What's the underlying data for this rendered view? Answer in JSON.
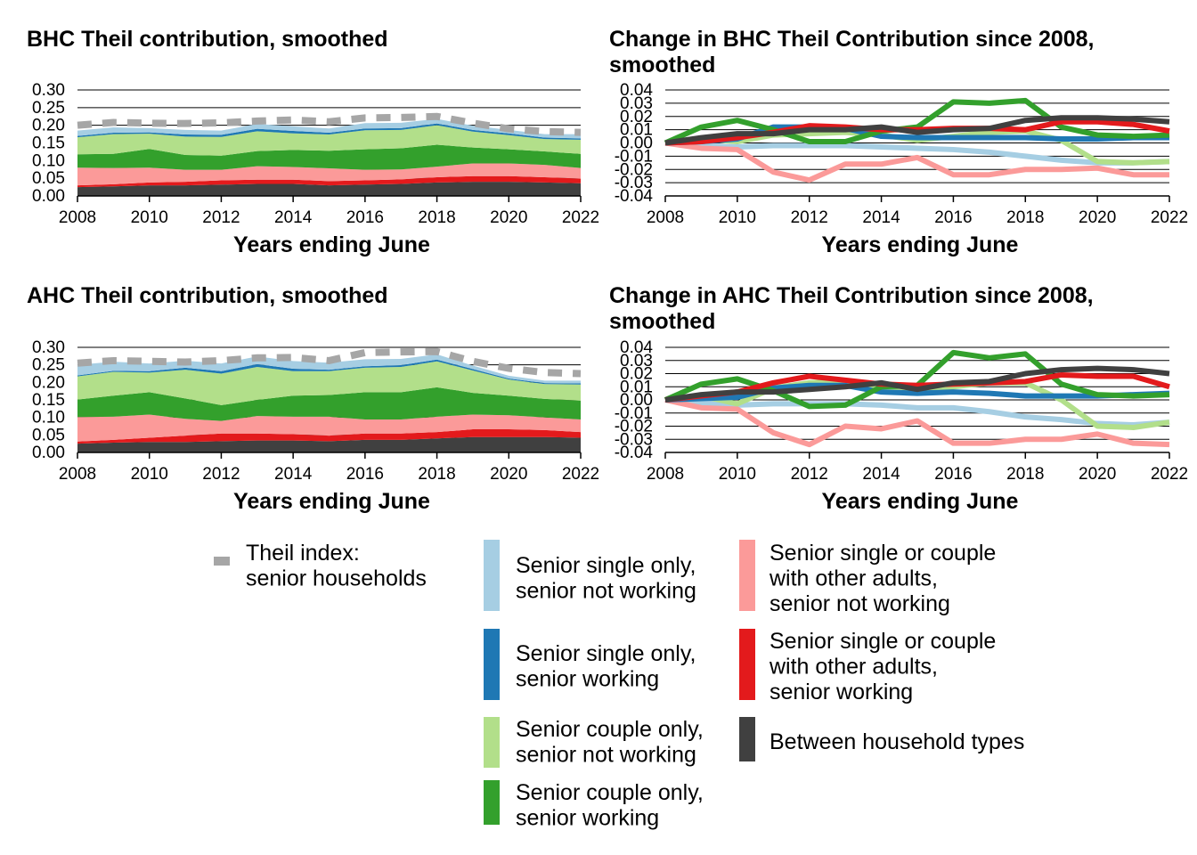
{
  "colors": {
    "theil": "#a6a6a6",
    "single_not_working": "#a6cee3",
    "single_working": "#1f78b4",
    "couple_not_working": "#b2df8a",
    "couple_working": "#33a02c",
    "other_not_working": "#fb9a99",
    "other_working": "#e31a1c",
    "between": "#404040"
  },
  "legend": [
    {
      "key": "theil",
      "lines": [
        "Theil index:",
        "senior households"
      ]
    },
    {
      "key": "single_not_working",
      "lines": [
        "Senior single only,",
        "senior not working"
      ]
    },
    {
      "key": "single_working",
      "lines": [
        "Senior single only,",
        "senior working"
      ]
    },
    {
      "key": "couple_not_working",
      "lines": [
        "Senior couple only,",
        "senior not working"
      ]
    },
    {
      "key": "couple_working",
      "lines": [
        "Senior couple only,",
        "senior working"
      ]
    },
    {
      "key": "other_not_working",
      "lines": [
        "Senior single or couple",
        "with other adults,",
        "senior not working"
      ]
    },
    {
      "key": "other_working",
      "lines": [
        "Senior single or couple",
        "with other adults,",
        "senior working"
      ]
    },
    {
      "key": "between",
      "lines": [
        "Between household types"
      ]
    }
  ],
  "chart_data": [
    {
      "type": "area",
      "title_lines": [
        "BHC Theil contribution, smoothed"
      ],
      "xlabel": "Years ending June",
      "xlim": [
        2008,
        2022
      ],
      "xticks": [
        "2008",
        "2010",
        "2012",
        "2014",
        "2016",
        "2018",
        "2020",
        "2022"
      ],
      "ylim": [
        0,
        0.3
      ],
      "yticks": [
        "0.00",
        "0.05",
        "0.10",
        "0.15",
        "0.20",
        "0.25",
        "0.30"
      ],
      "grid": "horizontal",
      "x": [
        2008,
        2009,
        2010,
        2011,
        2012,
        2013,
        2014,
        2015,
        2016,
        2017,
        2018,
        2019,
        2020,
        2021,
        2022
      ],
      "stack_order": [
        "between",
        "other_working",
        "other_not_working",
        "couple_working",
        "couple_not_working",
        "single_working",
        "single_not_working"
      ],
      "series": {
        "between": [
          0.025,
          0.027,
          0.03,
          0.03,
          0.032,
          0.034,
          0.034,
          0.03,
          0.032,
          0.034,
          0.038,
          0.04,
          0.04,
          0.038,
          0.036
        ],
        "other_working": [
          0.005,
          0.006,
          0.008,
          0.01,
          0.012,
          0.012,
          0.012,
          0.012,
          0.012,
          0.013,
          0.015,
          0.016,
          0.016,
          0.015,
          0.013
        ],
        "other_not_working": [
          0.05,
          0.046,
          0.042,
          0.034,
          0.03,
          0.038,
          0.036,
          0.036,
          0.03,
          0.028,
          0.03,
          0.036,
          0.036,
          0.035,
          0.03
        ],
        "couple_working": [
          0.038,
          0.04,
          0.053,
          0.042,
          0.04,
          0.043,
          0.048,
          0.05,
          0.058,
          0.06,
          0.062,
          0.045,
          0.04,
          0.038,
          0.04
        ],
        "couple_not_working": [
          0.048,
          0.056,
          0.043,
          0.052,
          0.053,
          0.056,
          0.047,
          0.046,
          0.054,
          0.052,
          0.055,
          0.045,
          0.04,
          0.035,
          0.04
        ],
        "single_working": [
          0.004,
          0.004,
          0.004,
          0.006,
          0.006,
          0.007,
          0.007,
          0.005,
          0.005,
          0.005,
          0.005,
          0.005,
          0.005,
          0.004,
          0.004
        ],
        "single_not_working": [
          0.015,
          0.015,
          0.012,
          0.013,
          0.012,
          0.014,
          0.013,
          0.012,
          0.015,
          0.015,
          0.013,
          0.012,
          0.01,
          0.01,
          0.012
        ]
      },
      "theil": [
        0.2,
        0.208,
        0.206,
        0.205,
        0.207,
        0.212,
        0.215,
        0.21,
        0.221,
        0.222,
        0.225,
        0.206,
        0.19,
        0.182,
        0.18
      ]
    },
    {
      "type": "line",
      "title_lines": [
        "Change in BHC Theil Contribution since 2008,",
        "smoothed"
      ],
      "xlabel": "Years ending June",
      "xlim": [
        2008,
        2022
      ],
      "xticks": [
        "2008",
        "2010",
        "2012",
        "2014",
        "2016",
        "2018",
        "2020",
        "2022"
      ],
      "ylim": [
        -0.04,
        0.04
      ],
      "yticks": [
        "-0.04",
        "-0.03",
        "-0.02",
        "-0.01",
        "0.00",
        "0.01",
        "0.02",
        "0.03",
        "0.04"
      ],
      "grid": "horizontal",
      "x": [
        2008,
        2009,
        2010,
        2011,
        2012,
        2013,
        2014,
        2015,
        2016,
        2017,
        2018,
        2019,
        2020,
        2021,
        2022
      ],
      "draw_order": [
        "single_not_working",
        "other_not_working",
        "couple_not_working",
        "single_working",
        "couple_working",
        "other_working",
        "between"
      ],
      "series": {
        "single_not_working": [
          0,
          -0.002,
          -0.003,
          -0.002,
          -0.002,
          -0.002,
          -0.003,
          -0.004,
          -0.005,
          -0.007,
          -0.01,
          -0.013,
          -0.015,
          -0.015,
          -0.014
        ],
        "other_not_working": [
          0,
          -0.004,
          -0.005,
          -0.022,
          -0.028,
          -0.016,
          -0.016,
          -0.011,
          -0.024,
          -0.024,
          -0.02,
          -0.02,
          -0.019,
          -0.024,
          -0.024
        ],
        "couple_not_working": [
          0,
          0.003,
          0.001,
          0.006,
          0.007,
          0.008,
          0.006,
          0.002,
          0.005,
          0.008,
          0.009,
          0.002,
          -0.014,
          -0.015,
          -0.014
        ],
        "single_working": [
          0,
          0.001,
          0.003,
          0.012,
          0.012,
          0.011,
          0.005,
          0.004,
          0.004,
          0.004,
          0.004,
          0.003,
          0.003,
          0.004,
          0.004
        ],
        "couple_working": [
          0,
          0.012,
          0.017,
          0.01,
          0.001,
          0.001,
          0.009,
          0.012,
          0.031,
          0.03,
          0.032,
          0.012,
          0.006,
          0.005,
          0.006
        ],
        "other_working": [
          0,
          0.001,
          0.004,
          0.008,
          0.013,
          0.012,
          0.01,
          0.01,
          0.011,
          0.011,
          0.01,
          0.016,
          0.016,
          0.014,
          0.009
        ],
        "between": [
          0,
          0.004,
          0.007,
          0.007,
          0.01,
          0.01,
          0.012,
          0.008,
          0.01,
          0.011,
          0.017,
          0.019,
          0.019,
          0.018,
          0.016
        ]
      }
    },
    {
      "type": "area",
      "title_lines": [
        "AHC Theil contribution, smoothed"
      ],
      "xlabel": "Years ending June",
      "xlim": [
        2008,
        2022
      ],
      "xticks": [
        "2008",
        "2010",
        "2012",
        "2014",
        "2016",
        "2018",
        "2020",
        "2022"
      ],
      "ylim": [
        0,
        0.3
      ],
      "yticks": [
        "0.00",
        "0.05",
        "0.10",
        "0.15",
        "0.20",
        "0.25",
        "0.30"
      ],
      "grid": "horizontal",
      "x": [
        2008,
        2009,
        2010,
        2011,
        2012,
        2013,
        2014,
        2015,
        2016,
        2017,
        2018,
        2019,
        2020,
        2021,
        2022
      ],
      "stack_order": [
        "between",
        "other_working",
        "other_not_working",
        "couple_working",
        "couple_not_working",
        "single_working",
        "single_not_working"
      ],
      "series": {
        "between": [
          0.025,
          0.028,
          0.03,
          0.03,
          0.032,
          0.034,
          0.034,
          0.032,
          0.036,
          0.036,
          0.04,
          0.044,
          0.044,
          0.044,
          0.042
        ],
        "other_working": [
          0.006,
          0.008,
          0.012,
          0.018,
          0.022,
          0.02,
          0.018,
          0.016,
          0.018,
          0.018,
          0.018,
          0.022,
          0.022,
          0.02,
          0.016
        ],
        "other_not_working": [
          0.07,
          0.066,
          0.066,
          0.048,
          0.036,
          0.05,
          0.05,
          0.054,
          0.04,
          0.04,
          0.044,
          0.042,
          0.04,
          0.036,
          0.036
        ],
        "couple_working": [
          0.05,
          0.06,
          0.064,
          0.058,
          0.045,
          0.046,
          0.06,
          0.062,
          0.078,
          0.078,
          0.084,
          0.062,
          0.056,
          0.053,
          0.054
        ],
        "couple_not_working": [
          0.066,
          0.068,
          0.056,
          0.082,
          0.09,
          0.094,
          0.07,
          0.068,
          0.07,
          0.072,
          0.074,
          0.064,
          0.046,
          0.042,
          0.046
        ],
        "single_working": [
          0.003,
          0.003,
          0.004,
          0.006,
          0.007,
          0.008,
          0.007,
          0.004,
          0.004,
          0.005,
          0.005,
          0.004,
          0.003,
          0.003,
          0.003
        ],
        "single_not_working": [
          0.03,
          0.026,
          0.022,
          0.02,
          0.022,
          0.022,
          0.022,
          0.02,
          0.02,
          0.018,
          0.015,
          0.01,
          0.008,
          0.007,
          0.008
        ]
      },
      "theil": [
        0.255,
        0.262,
        0.26,
        0.258,
        0.262,
        0.27,
        0.271,
        0.262,
        0.285,
        0.287,
        0.288,
        0.26,
        0.24,
        0.228,
        0.225
      ]
    },
    {
      "type": "line",
      "title_lines": [
        "Change in AHC Theil Contribution since 2008,",
        "smoothed"
      ],
      "xlabel": "Years ending June",
      "xlim": [
        2008,
        2022
      ],
      "xticks": [
        "2008",
        "2010",
        "2012",
        "2014",
        "2016",
        "2018",
        "2020",
        "2022"
      ],
      "ylim": [
        -0.04,
        0.04
      ],
      "yticks": [
        "-0.04",
        "-0.03",
        "-0.02",
        "-0.01",
        "0.00",
        "0.01",
        "0.02",
        "0.03",
        "0.04"
      ],
      "grid": "horizontal",
      "x": [
        2008,
        2009,
        2010,
        2011,
        2012,
        2013,
        2014,
        2015,
        2016,
        2017,
        2018,
        2019,
        2020,
        2021,
        2022
      ],
      "draw_order": [
        "single_not_working",
        "other_not_working",
        "couple_not_working",
        "single_working",
        "couple_working",
        "other_working",
        "between"
      ],
      "series": {
        "single_not_working": [
          0,
          -0.002,
          -0.004,
          -0.003,
          -0.003,
          -0.003,
          -0.004,
          -0.006,
          -0.006,
          -0.009,
          -0.013,
          -0.015,
          -0.018,
          -0.019,
          -0.017
        ],
        "other_not_working": [
          0,
          -0.006,
          -0.007,
          -0.025,
          -0.034,
          -0.02,
          -0.022,
          -0.016,
          -0.033,
          -0.033,
          -0.03,
          -0.03,
          -0.026,
          -0.033,
          -0.034
        ],
        "couple_not_working": [
          0,
          0.003,
          -0.003,
          0.009,
          0.013,
          0.014,
          0.01,
          0.007,
          0.01,
          0.013,
          0.013,
          0.0,
          -0.02,
          -0.021,
          -0.017
        ],
        "single_working": [
          0,
          0.001,
          0.002,
          0.009,
          0.011,
          0.011,
          0.006,
          0.005,
          0.006,
          0.005,
          0.003,
          0.003,
          0.003,
          0.004,
          0.005
        ],
        "couple_working": [
          0,
          0.012,
          0.016,
          0.007,
          -0.005,
          -0.004,
          0.01,
          0.011,
          0.036,
          0.032,
          0.035,
          0.012,
          0.004,
          0.003,
          0.004
        ],
        "other_working": [
          0,
          0.003,
          0.006,
          0.013,
          0.018,
          0.015,
          0.012,
          0.011,
          0.012,
          0.013,
          0.014,
          0.019,
          0.018,
          0.018,
          0.01
        ],
        "between": [
          0,
          0.004,
          0.006,
          0.006,
          0.008,
          0.01,
          0.013,
          0.008,
          0.013,
          0.014,
          0.02,
          0.023,
          0.024,
          0.023,
          0.02
        ]
      }
    }
  ]
}
